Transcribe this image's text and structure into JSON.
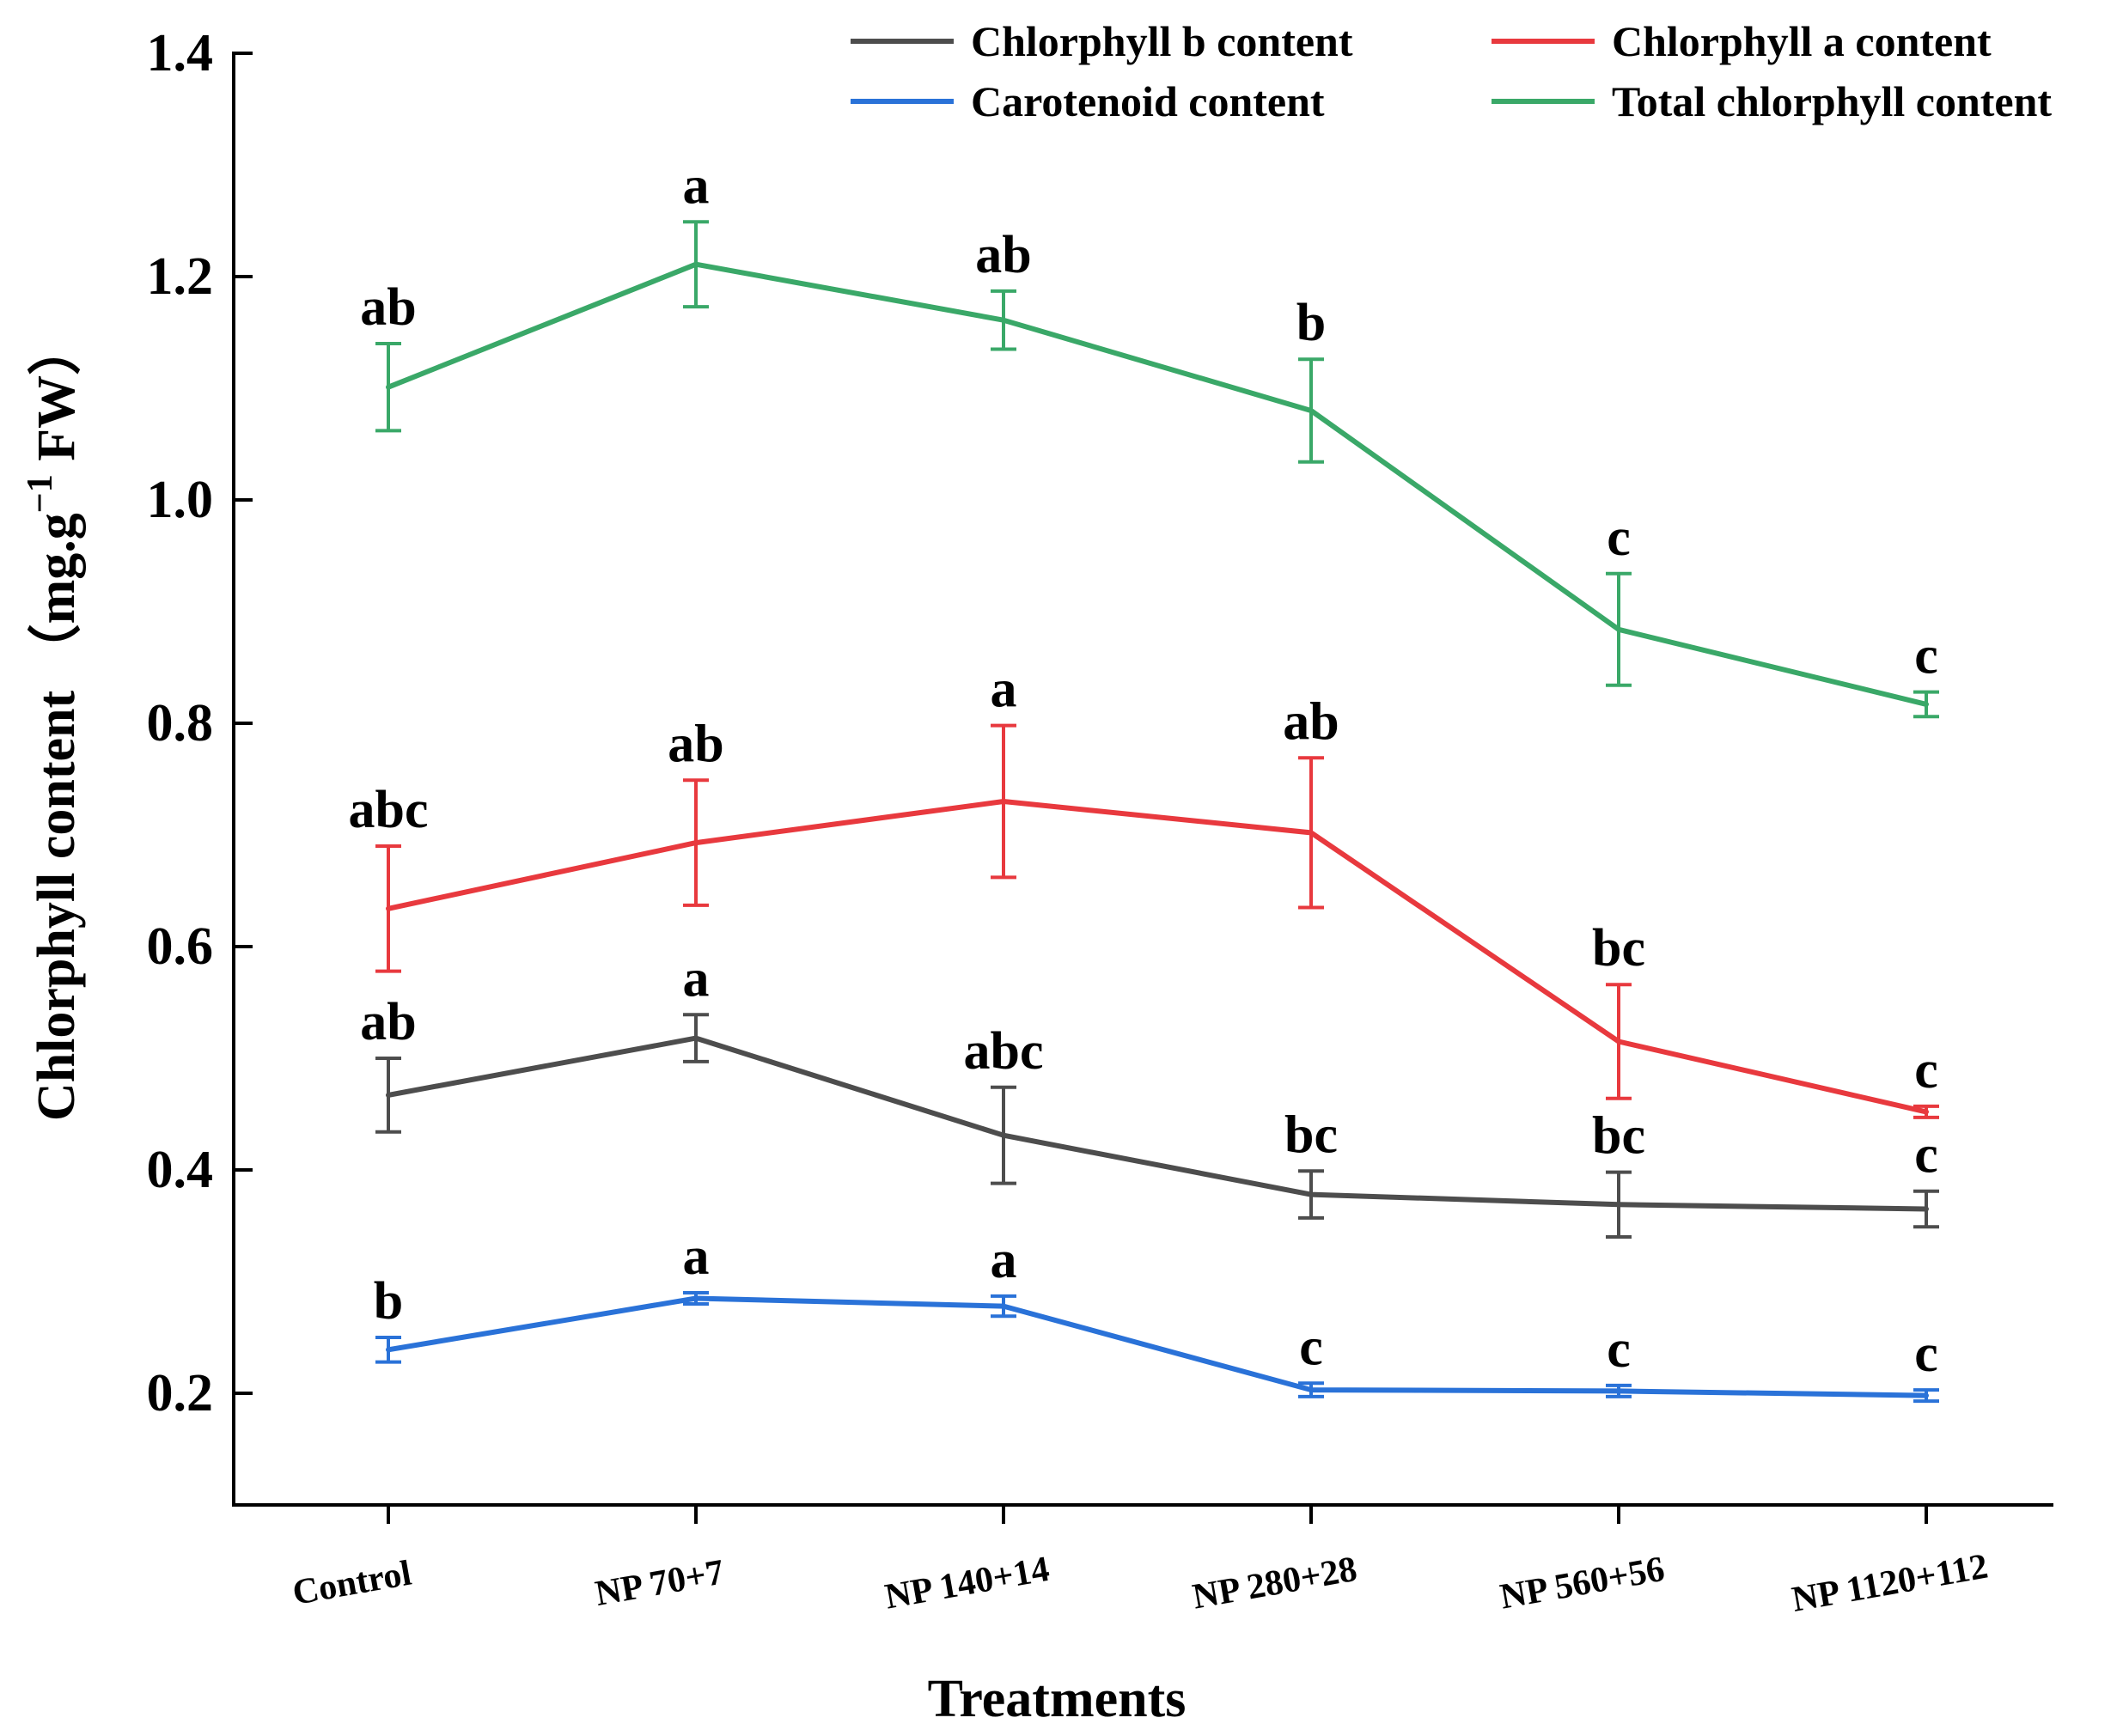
{
  "chart_data": {
    "type": "line",
    "title": "",
    "xlabel": "Treatments",
    "ylabel": "Chlorphyll content （mg.g",
    "ylabel_sup": "−1",
    "ylabel_tail": " FW）",
    "categories": [
      "Control",
      "NP 70+7",
      "NP 140+14",
      "NP 280+28",
      "NP 560+56",
      "NP 1120+112"
    ],
    "ylim": [
      0.1,
      1.4
    ],
    "yticks": [
      "0.2",
      "0.4",
      "0.6",
      "0.8",
      "1.0",
      "1.2",
      "1.4"
    ],
    "ytick_values": [
      0.2,
      0.4,
      0.6,
      0.8,
      1.0,
      1.2,
      1.4
    ],
    "legend_position": "top-right",
    "series": [
      {
        "name": "Chlorphyll b content",
        "color": "#4d4d4d",
        "values": [
          0.467,
          0.518,
          0.431,
          0.378,
          0.369,
          0.365
        ],
        "errors": [
          0.033,
          0.021,
          0.043,
          0.021,
          0.029,
          0.016
        ],
        "letters": [
          "ab",
          "a",
          "abc",
          "bc",
          "bc",
          "c"
        ]
      },
      {
        "name": "Chlorphyll a content",
        "color": "#e8393e",
        "values": [
          0.634,
          0.693,
          0.73,
          0.702,
          0.515,
          0.452
        ],
        "errors": [
          0.056,
          0.056,
          0.068,
          0.067,
          0.051,
          0.005
        ],
        "letters": [
          "abc",
          "ab",
          "a",
          "ab",
          "bc",
          "c"
        ]
      },
      {
        "name": "Carotenoid content",
        "color": "#2a72d8",
        "values": [
          0.239,
          0.285,
          0.278,
          0.203,
          0.202,
          0.198
        ],
        "errors": [
          0.011,
          0.005,
          0.009,
          0.006,
          0.005,
          0.005
        ],
        "letters": [
          "b",
          "a",
          "a",
          "c",
          "c",
          "c"
        ]
      },
      {
        "name": "Total chlorphyll content",
        "color": "#3aa868",
        "values": [
          1.101,
          1.211,
          1.161,
          1.08,
          0.884,
          0.817
        ],
        "errors": [
          0.039,
          0.038,
          0.026,
          0.046,
          0.05,
          0.011
        ],
        "letters": [
          "ab",
          "a",
          "ab",
          "b",
          "c",
          "c"
        ]
      }
    ]
  }
}
